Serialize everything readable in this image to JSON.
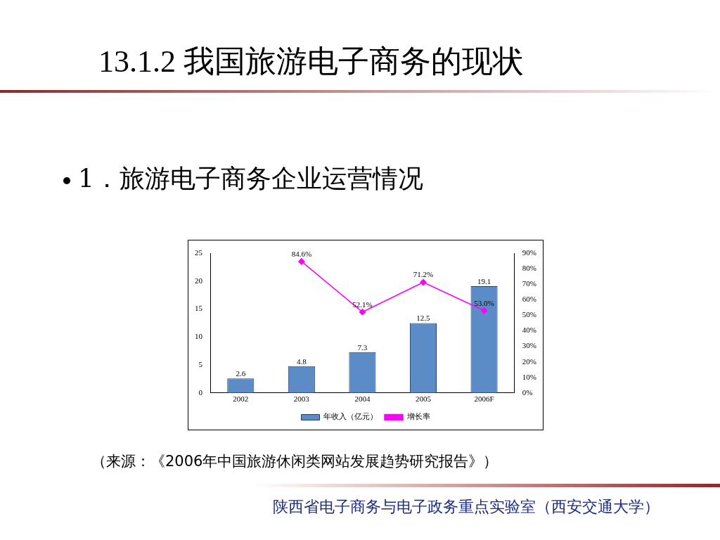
{
  "chart_data": {
    "type": "bar",
    "title": "13.1.2 我国旅游电子商务的现状",
    "subtitle": "1．旅游电子商务企业运营情况",
    "annotations": [
      "（来源：《2006年中国旅游休闲类网站发展趋势研究报告》）",
      "陕西省电子商务与电子政务重点实验室（西安交通大学）"
    ],
    "categories": [
      "2002",
      "2003",
      "2004",
      "2005",
      "2006F"
    ],
    "series": [
      {
        "name": "年收入（亿元）",
        "color": "#5b8cc8",
        "values": [
          2.6,
          4.8,
          7.3,
          12.5,
          19.1
        ],
        "value_labels": [
          "2.6",
          "4.8",
          "7.3",
          "12.5",
          "19.1"
        ]
      },
      {
        "name": "增长率",
        "type": "line",
        "axis": "y2",
        "color": "#ff00ff",
        "values": [
          null,
          84.6,
          52.1,
          71.2,
          53.0
        ],
        "value_labels": [
          null,
          "84.6%",
          "52.1%",
          "71.2%",
          "53.0%"
        ]
      }
    ],
    "ylim": [
      0,
      25
    ],
    "yticks": [
      0,
      5,
      10,
      15,
      20,
      25
    ],
    "y2lim": [
      0,
      90
    ],
    "y2ticks": [
      {
        "value": 0,
        "label": "0%"
      },
      {
        "value": 10,
        "label": "10%"
      },
      {
        "value": 20,
        "label": "20%"
      },
      {
        "value": 30,
        "label": "30%"
      },
      {
        "value": 40,
        "label": "40%"
      },
      {
        "value": 50,
        "label": "50%"
      },
      {
        "value": 60,
        "label": "60%"
      },
      {
        "value": 70,
        "label": "70%"
      },
      {
        "value": 80,
        "label": "80%"
      },
      {
        "value": 90,
        "label": "90%"
      }
    ],
    "grid": false,
    "legend": "bottom",
    "marker": "diamond"
  }
}
